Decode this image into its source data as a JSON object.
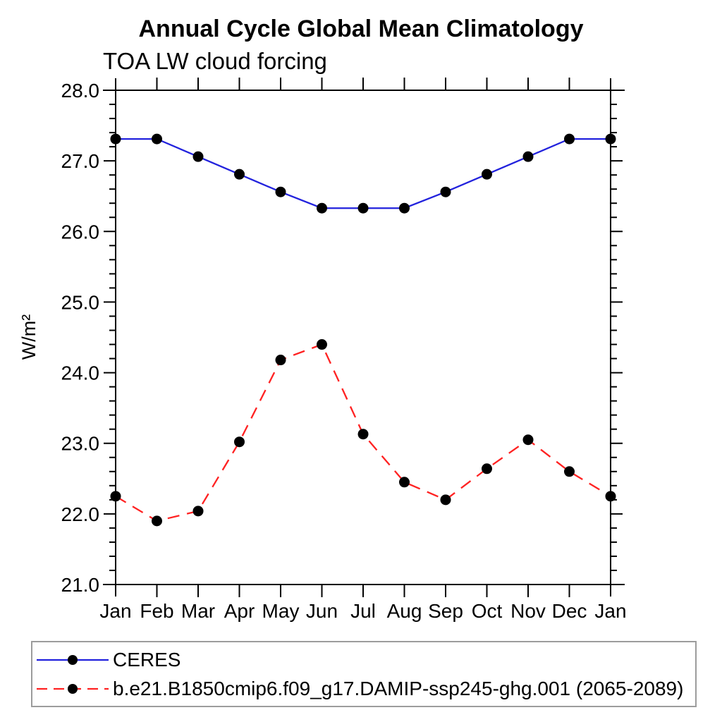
{
  "title": "Annual Cycle Global Mean Climatology",
  "subtitle": "TOA LW cloud forcing",
  "chart_data": {
    "type": "line",
    "x_categories": [
      "Jan",
      "Feb",
      "Mar",
      "Apr",
      "May",
      "Jun",
      "Jul",
      "Aug",
      "Sep",
      "Oct",
      "Nov",
      "Dec",
      "Jan"
    ],
    "ylabel": "W/m²",
    "ylim": [
      21.0,
      28.0
    ],
    "ytick_major_interval": 1.0,
    "ytick_minor_interval": 0.2,
    "grid": "off",
    "legend_position": "bottom",
    "marker": {
      "shape": "circle",
      "color": "#000000",
      "radius": 7.5
    },
    "series": [
      {
        "name": "CERES",
        "color": "#2222dd",
        "style": "solid",
        "values": [
          27.31,
          27.31,
          27.06,
          26.81,
          26.56,
          26.33,
          26.33,
          26.33,
          26.56,
          26.81,
          27.06,
          27.31,
          27.31
        ]
      },
      {
        "name": "b.e21.B1850cmip6.f09_g17.DAMIP-ssp245-ghg.001 (2065-2089)",
        "color": "#ff2222",
        "style": "dashed",
        "values": [
          22.25,
          21.9,
          22.04,
          23.02,
          24.18,
          24.4,
          23.13,
          22.45,
          22.2,
          22.64,
          23.05,
          22.6,
          22.25
        ]
      }
    ],
    "legend_border_color": "#9c9c9c"
  }
}
